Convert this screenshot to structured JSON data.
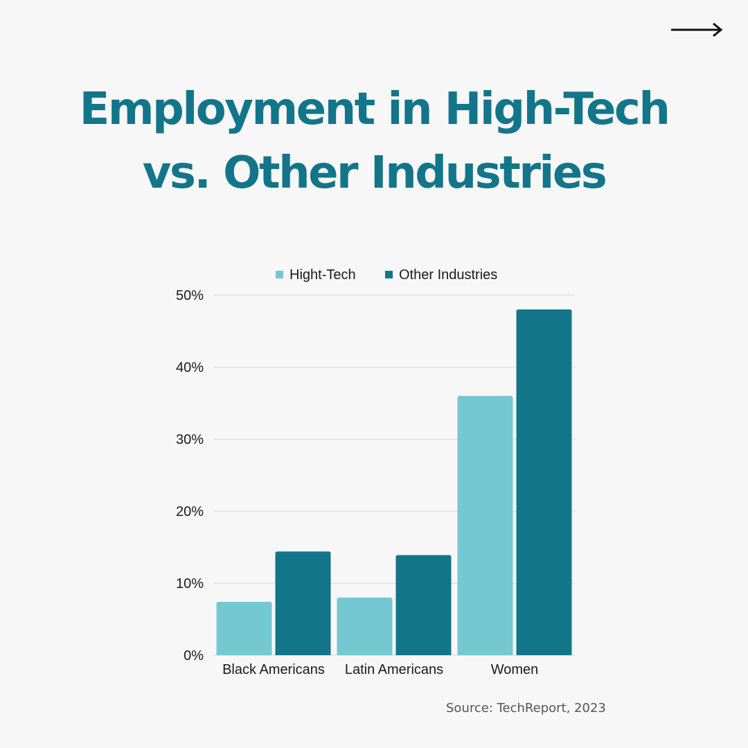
{
  "title": {
    "line1": "Employment in High-Tech",
    "line2": "vs. Other Industries"
  },
  "next_icon": "right-arrow-icon",
  "source": "Source: TechReport, 2023",
  "colors": {
    "title": "#13758a",
    "series_high_tech": "#73c8d2",
    "series_other": "#13758a",
    "grid": "#d4d4d4"
  },
  "chart_data": {
    "type": "bar",
    "title": "Employment in High-Tech vs. Other Industries",
    "categories": [
      "Black Americans",
      "Latin Americans",
      "Women"
    ],
    "series": [
      {
        "name": "Hight-Tech",
        "values": [
          7.4,
          8.0,
          36.0
        ]
      },
      {
        "name": "Other Industries",
        "values": [
          14.4,
          13.9,
          48.0
        ]
      }
    ],
    "ylim": [
      0,
      50
    ],
    "yticks": [
      0,
      10,
      20,
      30,
      40,
      50
    ],
    "ytick_labels": [
      "0%",
      "10%",
      "20%",
      "30%",
      "40%",
      "50%"
    ],
    "xlabel": "",
    "ylabel": "",
    "legend_position": "top-center",
    "grid": true
  }
}
